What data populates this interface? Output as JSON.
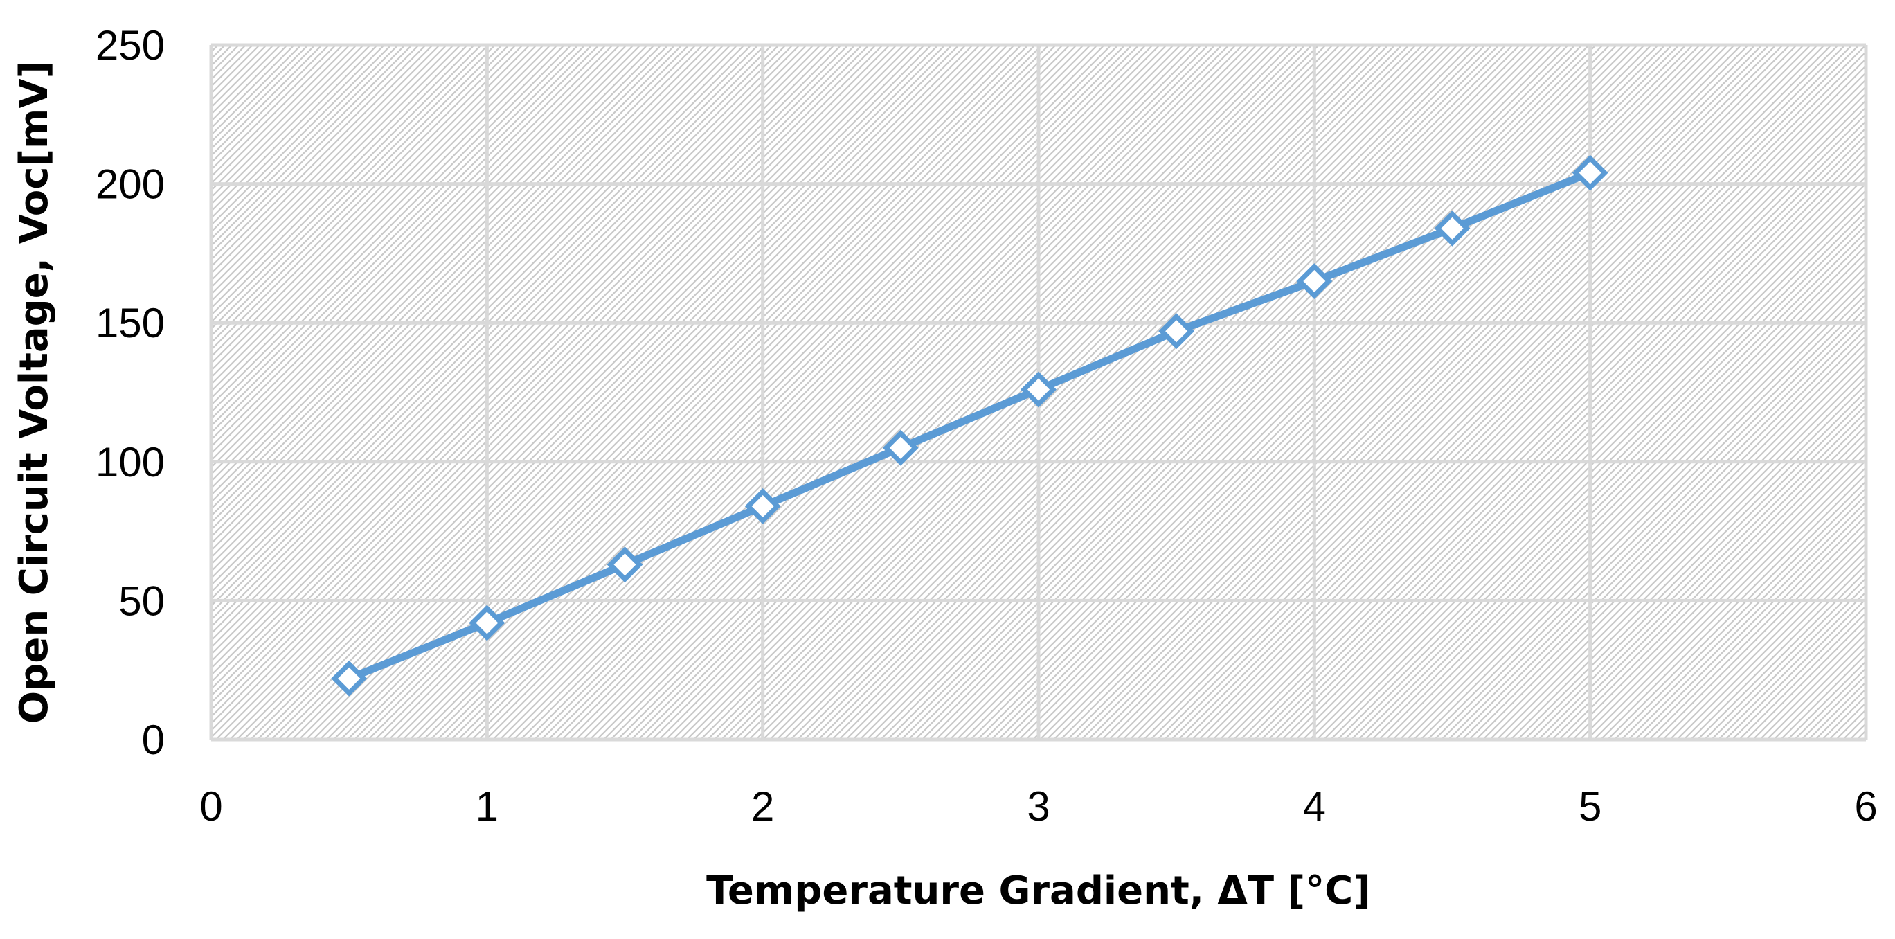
{
  "chart_data": {
    "type": "line",
    "title": "",
    "xlabel": "Temperature Gradient, ΔT [°C]",
    "ylabel": "Open Circuit Voltage, Voc[mV]",
    "xlim": [
      0,
      6
    ],
    "ylim": [
      0,
      250
    ],
    "x_ticks": [
      "0",
      "1",
      "2",
      "3",
      "4",
      "5",
      "6"
    ],
    "y_ticks": [
      "0",
      "50",
      "100",
      "150",
      "200",
      "250"
    ],
    "grid": true,
    "legend": "none",
    "marker": "diamond-open",
    "series": [
      {
        "color": "#5B9BD5",
        "x": [
          0.5,
          1.0,
          1.5,
          2.0,
          2.5,
          3.0,
          3.5,
          4.0,
          4.5,
          5.0
        ],
        "y": [
          22,
          42,
          63,
          84,
          105,
          126,
          147,
          165,
          184,
          204
        ]
      }
    ],
    "colors": {
      "line": "#5B9BD5",
      "grid": "#D9D9D9",
      "hatch": "#C8C8C8",
      "plot_background": "#FFFFFF"
    }
  }
}
